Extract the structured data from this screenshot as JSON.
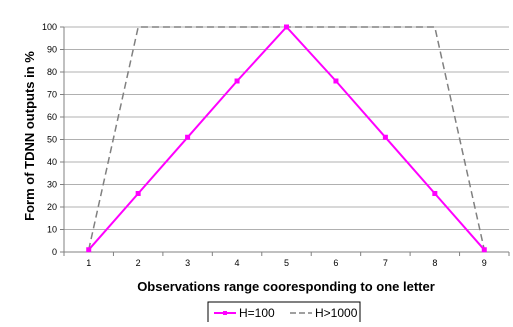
{
  "chart_data": {
    "type": "line",
    "title": "",
    "xlabel": "Observations range cooresponding to one letter",
    "ylabel": "Form of TDNN outputs in %",
    "x": [
      1,
      2,
      3,
      4,
      5,
      6,
      7,
      8,
      9
    ],
    "xlim": [
      0.5,
      9.5
    ],
    "ylim": [
      0,
      100
    ],
    "y_ticks": [
      0,
      10,
      20,
      30,
      40,
      50,
      60,
      70,
      80,
      90,
      100
    ],
    "grid": "horizontal",
    "legend_position": "bottom",
    "series": [
      {
        "name": "H=100",
        "values": [
          1,
          26,
          51,
          76,
          100,
          76,
          51,
          26,
          1
        ],
        "color": "#ff00ff",
        "style": "solid",
        "marker": "square"
      },
      {
        "name": "H>1000",
        "values": [
          1,
          100,
          100,
          100,
          100,
          100,
          100,
          100,
          1
        ],
        "color": "#808080",
        "style": "dashed",
        "marker": "none"
      }
    ]
  }
}
